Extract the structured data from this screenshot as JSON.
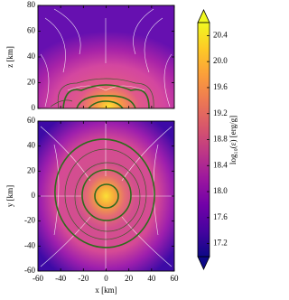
{
  "chart_data": [
    {
      "type": "heatmap",
      "ylabel": "z [km]",
      "xlim": [
        -60,
        60
      ],
      "ylim": [
        0,
        80
      ],
      "yticks": [
        0,
        20,
        40,
        60,
        80
      ]
    },
    {
      "type": "heatmap",
      "xlabel": "x [km]",
      "ylabel": "y [km]",
      "xlim": [
        -60,
        60
      ],
      "ylim": [
        -60,
        60
      ],
      "xticks": [
        -60,
        -40,
        -20,
        0,
        20,
        40,
        60
      ],
      "yticks": [
        -60,
        -40,
        -20,
        0,
        20,
        40,
        60
      ]
    }
  ],
  "colorbar": {
    "label": "log₁₀(ε) [erg/g]",
    "lim": [
      17.0,
      20.6
    ],
    "ticks": [
      17.2,
      17.6,
      {
        "value": 18,
        "label": "18.0"
      },
      18.4,
      18.8,
      19.2,
      19.6,
      {
        "value": 20,
        "label": "20.0"
      },
      20.4
    ],
    "colormap": "plasma",
    "extend": "both"
  }
}
